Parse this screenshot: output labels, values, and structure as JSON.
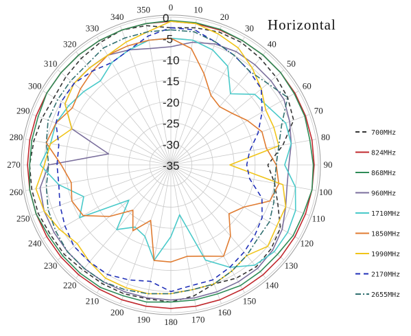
{
  "chart_data": {
    "type": "polar-line",
    "title": "Horizontal",
    "angle_labels": [
      "0",
      "10",
      "20",
      "30",
      "40",
      "50",
      "60",
      "70",
      "80",
      "90",
      "100",
      "110",
      "120",
      "130",
      "140",
      "150",
      "160",
      "170",
      "180",
      "190",
      "200",
      "210",
      "220",
      "230",
      "240",
      "250",
      "260",
      "270",
      "280",
      "290",
      "300",
      "310",
      "320",
      "330",
      "340",
      "350"
    ],
    "radial_labels": [
      "0",
      "-5",
      "-10",
      "-15",
      "-20",
      "-25",
      "-30",
      "-35"
    ],
    "rlim": [
      -35,
      0
    ],
    "grid": true,
    "legend_position": "right",
    "series": [
      {
        "name": "700MHz",
        "color": "#333333",
        "dash": "6,4",
        "values": [
          -2.5,
          -2,
          -1.5,
          -1.5,
          -2,
          -2.5,
          -3,
          -4,
          -8,
          -12,
          -10,
          -8,
          -5,
          -4,
          -3.5,
          -4,
          -5,
          -3.5,
          -2.5,
          -2.8,
          -2.5,
          -2.5,
          -2.5,
          -2,
          -2,
          -1.5,
          -1.5,
          -1.5,
          -2,
          -2.5,
          -3,
          -2.5,
          -2,
          -1.5,
          -1,
          -1.5
        ]
      },
      {
        "name": "824MHz",
        "color": "#c0282d",
        "dash": "",
        "values": [
          -1,
          -1,
          -1,
          -1,
          -1,
          -1,
          -1,
          -1,
          -1,
          -1,
          -1,
          -1,
          -1,
          -1,
          -1,
          -1,
          -1,
          -1,
          -1,
          -1,
          -1,
          -1,
          -1,
          -1,
          -1,
          -1,
          -1,
          -1,
          -1,
          -1,
          -1,
          -1,
          -1,
          -1,
          -1,
          -1
        ]
      },
      {
        "name": "868MHz",
        "color": "#2e8b57",
        "dash": "",
        "values": [
          -0.8,
          -0.8,
          -0.8,
          -1,
          -1,
          -1,
          -1.2,
          -1.2,
          -1.5,
          -1.2,
          -1,
          -1.5,
          -1.5,
          -2,
          -2,
          -2,
          -2.5,
          -2.5,
          -2.5,
          -2,
          -2,
          -1.5,
          -1.5,
          -1.5,
          -1.5,
          -1,
          -1,
          -1.5,
          -1.5,
          -1.5,
          -1,
          -1,
          -1,
          -1,
          -1,
          -1
        ]
      },
      {
        "name": "960MHz",
        "color": "#7a6e9c",
        "dash": "",
        "values": [
          -7,
          -5.5,
          -4.5,
          -4,
          -4,
          -4,
          -4,
          -5,
          -6,
          -7,
          -7,
          -6,
          -4.5,
          -3.5,
          -3,
          -3,
          -3,
          -3,
          -3,
          -3,
          -3,
          -3,
          -3,
          -3,
          -3,
          -3,
          -3.5,
          -6,
          -20,
          -10,
          -6,
          -5,
          -5,
          -5,
          -6,
          -7
        ]
      },
      {
        "name": "1710MHz",
        "color": "#48c9c9",
        "dash": "",
        "values": [
          -5,
          -5,
          -6,
          -8,
          -13,
          -9,
          -8,
          -6,
          -6,
          -8,
          -5,
          -3.5,
          -3,
          -3,
          -4,
          -7,
          -11,
          -23,
          -18,
          -12,
          -17,
          -18,
          -15,
          -22,
          -10,
          -13,
          -8,
          -4,
          -6,
          -6,
          -7,
          -8,
          -9,
          -7,
          -6,
          -5
        ]
      },
      {
        "name": "1850MHz",
        "color": "#e07b30",
        "dash": "",
        "values": [
          -5,
          -7,
          -12,
          -16,
          -17,
          -16,
          -14,
          -12,
          -12,
          -10,
          -9,
          -10,
          -15,
          -17,
          -13,
          -10,
          -12,
          -13,
          -12,
          -12,
          -21,
          -17,
          -21,
          -16,
          -11,
          -10,
          -11,
          -9,
          -5,
          -6,
          -8,
          -7,
          -6,
          -5,
          -5,
          -5
        ]
      },
      {
        "name": "1990MHz",
        "color": "#f0c419",
        "dash": "",
        "values": [
          -1,
          -1,
          -2,
          -3,
          -5,
          -7,
          -9,
          -9,
          -9,
          -21,
          -8,
          -6,
          -6,
          -5,
          -7,
          -6,
          -5,
          -5,
          -4.5,
          -4,
          -4,
          -4,
          -5,
          -6,
          -4.5,
          -3,
          -2.5,
          -5,
          -6,
          -10,
          -6,
          -5,
          -5,
          -5,
          -4,
          -3
        ]
      },
      {
        "name": "2170MHz",
        "color": "#1f2fb8",
        "dash": "7,5",
        "values": [
          -2.5,
          -2.5,
          -4,
          -5,
          -6,
          -7,
          -10,
          -13,
          -16,
          -17,
          -16,
          -12,
          -10,
          -9,
          -8,
          -7,
          -6,
          -6,
          -5,
          -7,
          -6,
          -5,
          -5,
          -5,
          -6,
          -7,
          -8,
          -8,
          -8,
          -6,
          -5,
          -5,
          -6,
          -7,
          -6,
          -4
        ]
      },
      {
        "name": "2655MHz",
        "color": "#2f6f6f",
        "dash": "8,3,2,3",
        "values": [
          -3,
          -3,
          -4,
          -5,
          -6,
          -5,
          -3,
          -7,
          -9,
          -10,
          -10,
          -9,
          -8,
          -8,
          -7,
          -6,
          -5,
          -5,
          -4.5,
          -4,
          -3.5,
          -3,
          -3,
          -3,
          -3.5,
          -4,
          -5,
          -6,
          -5,
          -4,
          -4,
          -4,
          -4,
          -3,
          -3,
          -3
        ]
      }
    ]
  }
}
